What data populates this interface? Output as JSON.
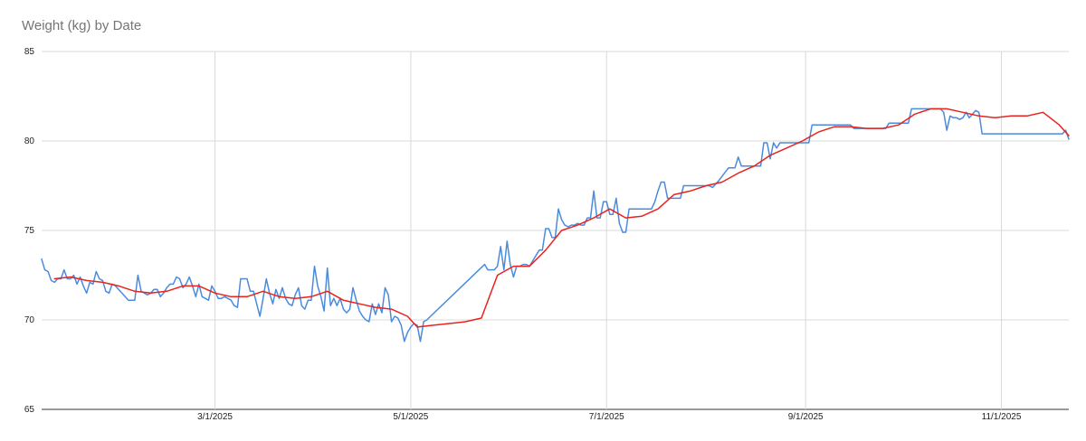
{
  "chart_data": {
    "type": "line",
    "title": "Weight (kg) by Date",
    "xlabel": "",
    "ylabel": "",
    "ylim": [
      65,
      85
    ],
    "yticks": [
      85,
      80,
      75,
      70,
      65
    ],
    "xlim": [
      "2025-01-06",
      "2025-11-22"
    ],
    "xticks": [
      {
        "date": "2025-03-01",
        "label": "3/1/2025"
      },
      {
        "date": "2025-05-01",
        "label": "5/1/2025"
      },
      {
        "date": "2025-07-01",
        "label": "7/1/2025"
      },
      {
        "date": "2025-09-01",
        "label": "9/1/2025"
      },
      {
        "date": "2025-11-01",
        "label": "11/1/2025"
      }
    ],
    "grid": true,
    "legend": "none",
    "series": [
      {
        "color": "#4a8bdc",
        "points": [
          [
            "2025-01-06",
            73.4
          ],
          [
            "2025-01-07",
            72.8
          ],
          [
            "2025-01-08",
            72.7
          ],
          [
            "2025-01-09",
            72.2
          ],
          [
            "2025-01-10",
            72.1
          ],
          [
            "2025-01-11",
            72.3
          ],
          [
            "2025-01-12",
            72.3
          ],
          [
            "2025-01-13",
            72.8
          ],
          [
            "2025-01-14",
            72.3
          ],
          [
            "2025-01-15",
            72.3
          ],
          [
            "2025-01-16",
            72.5
          ],
          [
            "2025-01-17",
            72.0
          ],
          [
            "2025-01-18",
            72.4
          ],
          [
            "2025-01-19",
            71.9
          ],
          [
            "2025-01-20",
            71.5
          ],
          [
            "2025-01-21",
            72.1
          ],
          [
            "2025-01-22",
            72.0
          ],
          [
            "2025-01-23",
            72.7
          ],
          [
            "2025-01-24",
            72.3
          ],
          [
            "2025-01-25",
            72.2
          ],
          [
            "2025-01-26",
            71.6
          ],
          [
            "2025-01-27",
            71.5
          ],
          [
            "2025-01-28",
            72.0
          ],
          [
            "2025-01-29",
            71.9
          ],
          [
            "2025-01-31",
            71.5
          ],
          [
            "2025-02-02",
            71.1
          ],
          [
            "2025-02-03",
            71.1
          ],
          [
            "2025-02-04",
            71.1
          ],
          [
            "2025-02-05",
            72.5
          ],
          [
            "2025-02-06",
            71.6
          ],
          [
            "2025-02-07",
            71.5
          ],
          [
            "2025-02-08",
            71.4
          ],
          [
            "2025-02-09",
            71.5
          ],
          [
            "2025-02-10",
            71.7
          ],
          [
            "2025-02-11",
            71.7
          ],
          [
            "2025-02-12",
            71.3
          ],
          [
            "2025-02-13",
            71.5
          ],
          [
            "2025-02-14",
            71.8
          ],
          [
            "2025-02-15",
            72.0
          ],
          [
            "2025-02-16",
            72.0
          ],
          [
            "2025-02-17",
            72.4
          ],
          [
            "2025-02-18",
            72.3
          ],
          [
            "2025-02-19",
            71.8
          ],
          [
            "2025-02-20",
            72.0
          ],
          [
            "2025-02-21",
            72.4
          ],
          [
            "2025-02-22",
            71.9
          ],
          [
            "2025-02-23",
            71.3
          ],
          [
            "2025-02-24",
            72.0
          ],
          [
            "2025-02-25",
            71.3
          ],
          [
            "2025-02-26",
            71.2
          ],
          [
            "2025-02-27",
            71.1
          ],
          [
            "2025-02-28",
            71.9
          ],
          [
            "2025-03-01",
            71.6
          ],
          [
            "2025-03-02",
            71.2
          ],
          [
            "2025-03-03",
            71.2
          ],
          [
            "2025-03-04",
            71.3
          ],
          [
            "2025-03-05",
            71.2
          ],
          [
            "2025-03-06",
            71.1
          ],
          [
            "2025-03-07",
            70.8
          ],
          [
            "2025-03-08",
            70.7
          ],
          [
            "2025-03-09",
            72.3
          ],
          [
            "2025-03-10",
            72.3
          ],
          [
            "2025-03-11",
            72.3
          ],
          [
            "2025-03-12",
            71.6
          ],
          [
            "2025-03-13",
            71.6
          ],
          [
            "2025-03-14",
            70.9
          ],
          [
            "2025-03-15",
            70.2
          ],
          [
            "2025-03-16",
            71.2
          ],
          [
            "2025-03-17",
            72.3
          ],
          [
            "2025-03-18",
            71.5
          ],
          [
            "2025-03-19",
            70.9
          ],
          [
            "2025-03-20",
            71.7
          ],
          [
            "2025-03-21",
            71.2
          ],
          [
            "2025-03-22",
            71.8
          ],
          [
            "2025-03-23",
            71.2
          ],
          [
            "2025-03-24",
            70.9
          ],
          [
            "2025-03-25",
            70.8
          ],
          [
            "2025-03-26",
            71.4
          ],
          [
            "2025-03-27",
            71.8
          ],
          [
            "2025-03-28",
            70.8
          ],
          [
            "2025-03-29",
            70.6
          ],
          [
            "2025-03-30",
            71.1
          ],
          [
            "2025-03-31",
            71.1
          ],
          [
            "2025-04-01",
            73.0
          ],
          [
            "2025-04-02",
            71.9
          ],
          [
            "2025-04-03",
            71.3
          ],
          [
            "2025-04-04",
            70.5
          ],
          [
            "2025-04-05",
            72.9
          ],
          [
            "2025-04-06",
            70.8
          ],
          [
            "2025-04-07",
            71.2
          ],
          [
            "2025-04-08",
            70.8
          ],
          [
            "2025-04-09",
            71.2
          ],
          [
            "2025-04-10",
            70.6
          ],
          [
            "2025-04-11",
            70.4
          ],
          [
            "2025-04-12",
            70.6
          ],
          [
            "2025-04-13",
            71.8
          ],
          [
            "2025-04-14",
            71.1
          ],
          [
            "2025-04-15",
            70.5
          ],
          [
            "2025-04-16",
            70.2
          ],
          [
            "2025-04-17",
            70.0
          ],
          [
            "2025-04-18",
            69.9
          ],
          [
            "2025-04-19",
            70.9
          ],
          [
            "2025-04-20",
            70.3
          ],
          [
            "2025-04-21",
            70.9
          ],
          [
            "2025-04-22",
            70.4
          ],
          [
            "2025-04-23",
            71.8
          ],
          [
            "2025-04-24",
            71.4
          ],
          [
            "2025-04-25",
            69.9
          ],
          [
            "2025-04-26",
            70.2
          ],
          [
            "2025-04-27",
            70.1
          ],
          [
            "2025-04-28",
            69.7
          ],
          [
            "2025-04-29",
            68.8
          ],
          [
            "2025-04-30",
            69.3
          ],
          [
            "2025-05-01",
            69.6
          ],
          [
            "2025-05-02",
            69.8
          ],
          [
            "2025-05-03",
            69.7
          ],
          [
            "2025-05-04",
            68.8
          ],
          [
            "2025-05-05",
            69.9
          ],
          [
            "2025-05-06",
            70.0
          ],
          [
            "2025-05-24",
            73.1
          ],
          [
            "2025-05-25",
            72.8
          ],
          [
            "2025-05-26",
            72.8
          ],
          [
            "2025-05-27",
            72.8
          ],
          [
            "2025-05-28",
            73.0
          ],
          [
            "2025-05-29",
            74.1
          ],
          [
            "2025-05-30",
            72.8
          ],
          [
            "2025-05-31",
            74.4
          ],
          [
            "2025-06-01",
            73.1
          ],
          [
            "2025-06-02",
            72.4
          ],
          [
            "2025-06-03",
            73.0
          ],
          [
            "2025-06-04",
            73.0
          ],
          [
            "2025-06-05",
            73.1
          ],
          [
            "2025-06-06",
            73.1
          ],
          [
            "2025-06-07",
            73.0
          ],
          [
            "2025-06-08",
            73.3
          ],
          [
            "2025-06-09",
            73.6
          ],
          [
            "2025-06-10",
            73.9
          ],
          [
            "2025-06-11",
            73.9
          ],
          [
            "2025-06-12",
            75.1
          ],
          [
            "2025-06-13",
            75.1
          ],
          [
            "2025-06-14",
            74.6
          ],
          [
            "2025-06-15",
            74.6
          ],
          [
            "2025-06-16",
            76.2
          ],
          [
            "2025-06-17",
            75.6
          ],
          [
            "2025-06-18",
            75.3
          ],
          [
            "2025-06-19",
            75.2
          ],
          [
            "2025-06-20",
            75.3
          ],
          [
            "2025-06-21",
            75.3
          ],
          [
            "2025-06-22",
            75.4
          ],
          [
            "2025-06-23",
            75.3
          ],
          [
            "2025-06-24",
            75.3
          ],
          [
            "2025-06-25",
            75.7
          ],
          [
            "2025-06-26",
            75.7
          ],
          [
            "2025-06-27",
            77.2
          ],
          [
            "2025-06-28",
            75.7
          ],
          [
            "2025-06-29",
            75.7
          ],
          [
            "2025-06-30",
            76.6
          ],
          [
            "2025-07-01",
            76.6
          ],
          [
            "2025-07-02",
            75.9
          ],
          [
            "2025-07-03",
            75.9
          ],
          [
            "2025-07-04",
            76.8
          ],
          [
            "2025-07-05",
            75.4
          ],
          [
            "2025-07-06",
            74.9
          ],
          [
            "2025-07-07",
            74.9
          ],
          [
            "2025-07-08",
            76.2
          ],
          [
            "2025-07-15",
            76.2
          ],
          [
            "2025-07-16",
            76.6
          ],
          [
            "2025-07-17",
            77.2
          ],
          [
            "2025-07-18",
            77.7
          ],
          [
            "2025-07-19",
            77.7
          ],
          [
            "2025-07-20",
            76.8
          ],
          [
            "2025-07-24",
            76.8
          ],
          [
            "2025-07-25",
            77.5
          ],
          [
            "2025-08-02",
            77.5
          ],
          [
            "2025-08-03",
            77.4
          ],
          [
            "2025-08-05",
            77.8
          ],
          [
            "2025-08-08",
            78.5
          ],
          [
            "2025-08-10",
            78.5
          ],
          [
            "2025-08-11",
            79.1
          ],
          [
            "2025-08-12",
            78.6
          ],
          [
            "2025-08-18",
            78.6
          ],
          [
            "2025-08-19",
            79.9
          ],
          [
            "2025-08-20",
            79.9
          ],
          [
            "2025-08-21",
            79.0
          ],
          [
            "2025-08-22",
            79.9
          ],
          [
            "2025-08-23",
            79.6
          ],
          [
            "2025-08-24",
            79.9
          ],
          [
            "2025-08-25",
            79.9
          ],
          [
            "2025-09-02",
            79.9
          ],
          [
            "2025-09-03",
            80.9
          ],
          [
            "2025-09-15",
            80.9
          ],
          [
            "2025-09-16",
            80.7
          ],
          [
            "2025-09-26",
            80.7
          ],
          [
            "2025-09-27",
            81.0
          ],
          [
            "2025-10-03",
            81.0
          ],
          [
            "2025-10-04",
            81.8
          ],
          [
            "2025-10-12",
            81.8
          ],
          [
            "2025-10-13",
            81.8
          ],
          [
            "2025-10-14",
            81.6
          ],
          [
            "2025-10-15",
            80.6
          ],
          [
            "2025-10-16",
            81.4
          ],
          [
            "2025-10-17",
            81.3
          ],
          [
            "2025-10-18",
            81.3
          ],
          [
            "2025-10-19",
            81.2
          ],
          [
            "2025-10-20",
            81.3
          ],
          [
            "2025-10-21",
            81.6
          ],
          [
            "2025-10-22",
            81.3
          ],
          [
            "2025-10-23",
            81.5
          ],
          [
            "2025-10-24",
            81.7
          ],
          [
            "2025-10-25",
            81.6
          ],
          [
            "2025-10-26",
            80.4
          ],
          [
            "2025-11-20",
            80.4
          ],
          [
            "2025-11-21",
            80.6
          ],
          [
            "2025-11-22",
            80.1
          ]
        ]
      },
      {
        "color": "#e8231e",
        "points": [
          [
            "2025-01-10",
            72.3
          ],
          [
            "2025-01-15",
            72.4
          ],
          [
            "2025-01-20",
            72.2
          ],
          [
            "2025-01-25",
            72.1
          ],
          [
            "2025-01-30",
            71.9
          ],
          [
            "2025-02-04",
            71.6
          ],
          [
            "2025-02-09",
            71.5
          ],
          [
            "2025-02-14",
            71.6
          ],
          [
            "2025-02-19",
            71.9
          ],
          [
            "2025-02-24",
            71.9
          ],
          [
            "2025-03-01",
            71.5
          ],
          [
            "2025-03-06",
            71.3
          ],
          [
            "2025-03-11",
            71.3
          ],
          [
            "2025-03-16",
            71.6
          ],
          [
            "2025-03-21",
            71.3
          ],
          [
            "2025-03-26",
            71.2
          ],
          [
            "2025-03-31",
            71.3
          ],
          [
            "2025-04-05",
            71.6
          ],
          [
            "2025-04-10",
            71.1
          ],
          [
            "2025-04-15",
            70.9
          ],
          [
            "2025-04-20",
            70.7
          ],
          [
            "2025-04-25",
            70.6
          ],
          [
            "2025-04-30",
            70.2
          ],
          [
            "2025-05-03",
            69.6
          ],
          [
            "2025-05-08",
            69.7
          ],
          [
            "2025-05-13",
            69.8
          ],
          [
            "2025-05-18",
            69.9
          ],
          [
            "2025-05-23",
            70.1
          ],
          [
            "2025-05-28",
            72.5
          ],
          [
            "2025-06-02",
            73.0
          ],
          [
            "2025-06-07",
            73.0
          ],
          [
            "2025-06-12",
            73.9
          ],
          [
            "2025-06-17",
            75.0
          ],
          [
            "2025-06-22",
            75.3
          ],
          [
            "2025-06-27",
            75.7
          ],
          [
            "2025-07-02",
            76.2
          ],
          [
            "2025-07-07",
            75.7
          ],
          [
            "2025-07-12",
            75.8
          ],
          [
            "2025-07-17",
            76.2
          ],
          [
            "2025-07-22",
            77.0
          ],
          [
            "2025-07-27",
            77.2
          ],
          [
            "2025-08-01",
            77.5
          ],
          [
            "2025-08-06",
            77.7
          ],
          [
            "2025-08-11",
            78.2
          ],
          [
            "2025-08-16",
            78.6
          ],
          [
            "2025-08-21",
            79.2
          ],
          [
            "2025-08-26",
            79.6
          ],
          [
            "2025-08-31",
            80.0
          ],
          [
            "2025-09-05",
            80.5
          ],
          [
            "2025-09-10",
            80.8
          ],
          [
            "2025-09-15",
            80.8
          ],
          [
            "2025-09-20",
            80.7
          ],
          [
            "2025-09-25",
            80.7
          ],
          [
            "2025-09-30",
            80.9
          ],
          [
            "2025-10-05",
            81.5
          ],
          [
            "2025-10-10",
            81.8
          ],
          [
            "2025-10-15",
            81.8
          ],
          [
            "2025-10-20",
            81.6
          ],
          [
            "2025-10-25",
            81.4
          ],
          [
            "2025-10-30",
            81.3
          ],
          [
            "2025-11-04",
            81.4
          ],
          [
            "2025-11-09",
            81.4
          ],
          [
            "2025-11-14",
            81.6
          ],
          [
            "2025-11-19",
            80.9
          ],
          [
            "2025-11-22",
            80.3
          ]
        ]
      }
    ]
  }
}
